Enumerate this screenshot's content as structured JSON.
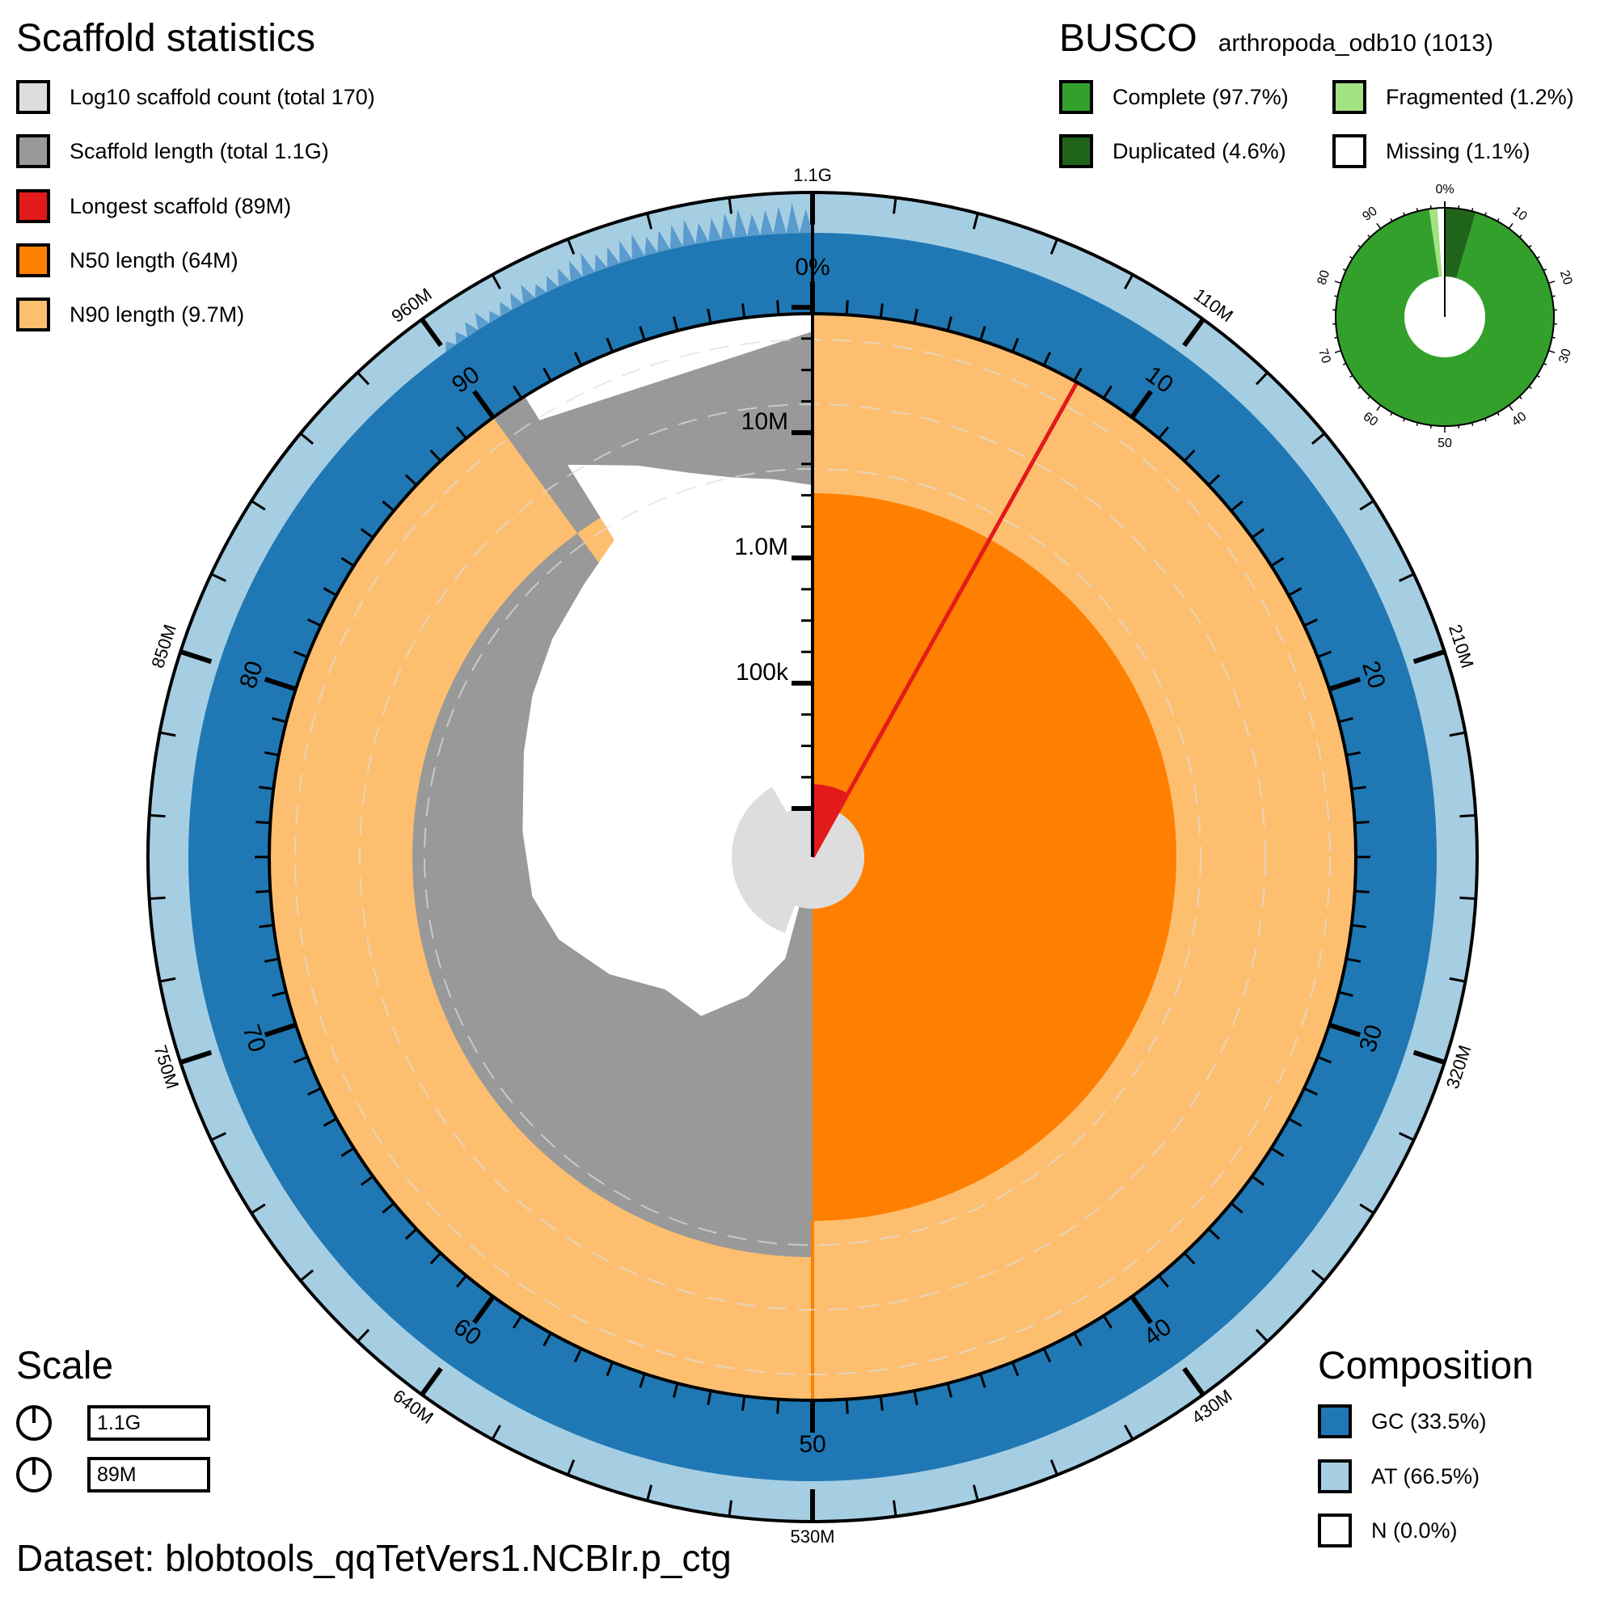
{
  "scaffold_stats": {
    "title": "Scaffold statistics",
    "legend": [
      {
        "key": "count",
        "label": "Log10 scaffold count (total 170)",
        "color": "#dddddd"
      },
      {
        "key": "length",
        "label": "Scaffold length (total 1.1G)",
        "color": "#999999"
      },
      {
        "key": "longest",
        "label": "Longest scaffold (89M)",
        "color": "#e31a1c"
      },
      {
        "key": "n50",
        "label": "N50 length (64M)",
        "color": "#ff7f00"
      },
      {
        "key": "n90",
        "label": "N90 length (9.7M)",
        "color": "#fdbf6f"
      }
    ]
  },
  "busco": {
    "title": "BUSCO",
    "lineage": "arthropoda_odb10 (1013)",
    "legend": [
      {
        "key": "complete",
        "label": "Complete (97.7%)",
        "color": "#33a02c"
      },
      {
        "key": "fragmented",
        "label": "Fragmented (1.2%)",
        "color": "#a3e283"
      },
      {
        "key": "duplicated",
        "label": "Duplicated (4.6%)",
        "color": "#20641c"
      },
      {
        "key": "missing",
        "label": "Missing (1.1%)",
        "color": "#ffffff"
      }
    ]
  },
  "scale": {
    "title": "Scale",
    "items": [
      {
        "key": "total",
        "label": "1.1G"
      },
      {
        "key": "longest",
        "label": "89M"
      }
    ]
  },
  "composition": {
    "title": "Composition",
    "legend": [
      {
        "key": "gc",
        "label": "GC (33.5%)",
        "color": "#1f78b4"
      },
      {
        "key": "at",
        "label": "AT (66.5%)",
        "color": "#a6cee3"
      },
      {
        "key": "n",
        "label": "N (0.0%)",
        "color": "#ffffff"
      }
    ]
  },
  "dataset": "Dataset: blobtools_qqTetVers1.NCBIr.p_ctg",
  "chart_data": {
    "type": "snail",
    "total_length": 1100000000,
    "scaffold_count": 170,
    "longest_scaffold": 89000000,
    "n50_length": 64000000,
    "n90_length": 9700000,
    "gc_percent": 33.5,
    "at_percent": 66.5,
    "n_percent": 0.0,
    "percent_axis_labels": [
      "0%",
      "10",
      "20",
      "30",
      "40",
      "50",
      "60",
      "70",
      "80",
      "90"
    ],
    "length_axis_labels": [
      "1.1G",
      "110M",
      "210M",
      "320M",
      "430M",
      "530M",
      "640M",
      "750M",
      "850M",
      "960M"
    ],
    "radial_axis_labels": [
      "100k",
      "1.0M",
      "10M"
    ],
    "busco_donut": {
      "complete_single": 93.1,
      "duplicated": 4.6,
      "fragmented": 1.2,
      "missing": 1.1,
      "tick_labels": [
        "0%",
        "10",
        "20",
        "30",
        "40",
        "50",
        "60",
        "70",
        "80",
        "90"
      ]
    }
  }
}
